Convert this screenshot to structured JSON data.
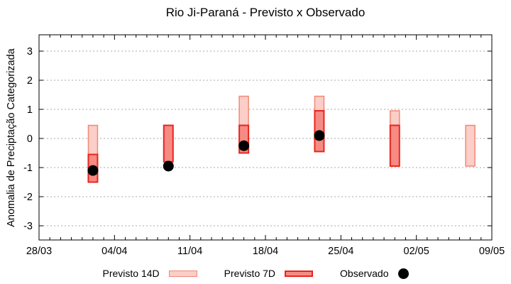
{
  "chart_data": {
    "type": "bar",
    "subtype": "floating-range-bars",
    "title": "Rio Ji-Paraná - Previsto x Observado",
    "xlabel": "",
    "ylabel": "Anomalia de Preciptação Categorizada",
    "ylim": [
      -3.5,
      3.5
    ],
    "yticks": [
      3,
      2,
      1,
      0,
      -1,
      -2,
      -3
    ],
    "xtick_labels": [
      "28/03",
      "04/04",
      "11/04",
      "18/04",
      "25/04",
      "02/05",
      "09/05"
    ],
    "xtick_days": [
      0,
      7,
      14,
      21,
      28,
      35,
      42
    ],
    "x_total_days": 42,
    "minor_xtick_every_days": 1,
    "grid": "horizontal-dashed",
    "legend_position": "bottom-center",
    "series": [
      {
        "name": "Previsto 14D",
        "kind": "range-bar",
        "fill": "#fbcec7",
        "border": "#f08878"
      },
      {
        "name": "Previsto 7D",
        "kind": "range-bar",
        "fill": "#f68b84",
        "border": "#e9251c"
      },
      {
        "name": "Observado",
        "kind": "point",
        "color": "#000000"
      }
    ],
    "bars": [
      {
        "date": "02/04",
        "day": 5,
        "previsto_14d": [
          0.45,
          -0.55
        ],
        "previsto_7d": [
          -0.55,
          -1.5
        ],
        "observado": -1.1
      },
      {
        "date": "09/04",
        "day": 12,
        "previsto_14d": null,
        "previsto_7d": [
          0.45,
          -0.8
        ],
        "observado": -0.95
      },
      {
        "date": "16/04",
        "day": 19,
        "previsto_14d": [
          1.45,
          0.45
        ],
        "previsto_7d": [
          0.45,
          -0.5
        ],
        "observado": -0.25
      },
      {
        "date": "23/04",
        "day": 26,
        "previsto_14d": [
          1.45,
          0.95
        ],
        "previsto_7d": [
          0.95,
          -0.45
        ],
        "observado": 0.1
      },
      {
        "date": "30/04",
        "day": 33,
        "previsto_14d": [
          0.95,
          0.45
        ],
        "previsto_7d": [
          0.45,
          -0.95
        ],
        "observado": null
      },
      {
        "date": "07/05",
        "day": 40,
        "previsto_14d": [
          0.45,
          -0.95
        ],
        "previsto_7d": null,
        "observado": null
      }
    ]
  },
  "legend": {
    "items": [
      {
        "label": "Previsto 14D",
        "swatch": "light-pink-rect"
      },
      {
        "label": "Previsto 7D",
        "swatch": "red-rect"
      },
      {
        "label": "Observado",
        "swatch": "black-dot"
      }
    ]
  },
  "colors": {
    "background": "#ffffff",
    "axis": "#000000",
    "text": "#000000",
    "grid": "#a9a9a9",
    "previsto_14d_fill": "#fbcec7",
    "previsto_14d_border": "#f08878",
    "previsto_7d_fill": "#f68b84",
    "previsto_7d_border": "#e9251c",
    "observado": "#000000"
  }
}
